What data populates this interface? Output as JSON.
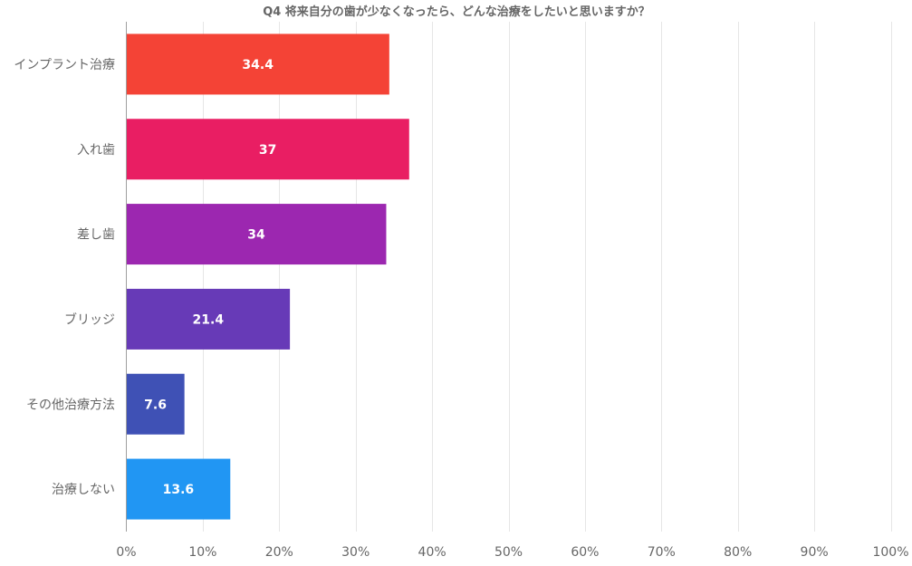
{
  "chart_data": {
    "type": "bar",
    "orientation": "horizontal",
    "title": "Q4 将来自分の歯が少なくなったら、どんな治療をしたいと思いますか？",
    "categories": [
      "インプラント治療",
      "入れ歯",
      "差し歯",
      "ブリッジ",
      "その他治療方法",
      "治療しない"
    ],
    "values": [
      34.4,
      37,
      34,
      21.4,
      7.6,
      13.6
    ],
    "value_labels": [
      "34.4",
      "37",
      "34",
      "21.4",
      "7.6",
      "13.6"
    ],
    "colors": [
      "#f44336",
      "#e91e63",
      "#9c27b0",
      "#673ab7",
      "#3f51b5",
      "#2196f3"
    ],
    "xlim": [
      0,
      100
    ],
    "ticks": [
      0,
      10,
      20,
      30,
      40,
      50,
      60,
      70,
      80,
      90,
      100
    ],
    "tick_labels": [
      "0%",
      "10%",
      "20%",
      "30%",
      "40%",
      "50%",
      "60%",
      "70%",
      "80%",
      "90%",
      "100%"
    ],
    "grid": true,
    "legend": "none"
  }
}
